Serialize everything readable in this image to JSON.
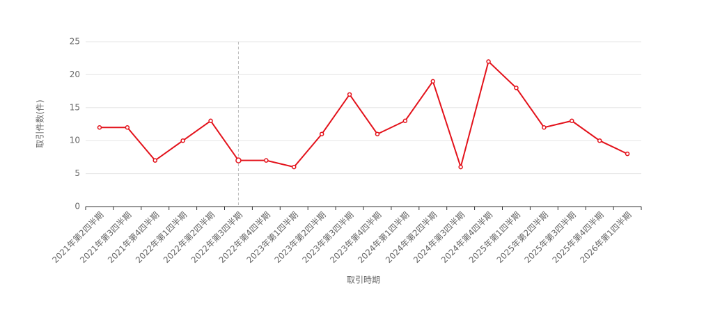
{
  "chart_data": {
    "type": "line",
    "x_label": "取引時期",
    "y_label": "取引件数(件)",
    "categories": [
      "2021年第2四半期",
      "2021年第3四半期",
      "2021年第4四半期",
      "2022年第1四半期",
      "2022年第2四半期",
      "2022年第3四半期",
      "2022年第4四半期",
      "2023年第1四半期",
      "2023年第2四半期",
      "2023年第3四半期",
      "2023年第4四半期",
      "2024年第1四半期",
      "2024年第2四半期",
      "2024年第3四半期",
      "2024年第4四半期",
      "2025年第1四半期",
      "2025年第2四半期",
      "2025年第3四半期",
      "2025年第4四半期",
      "2026年第1四半期"
    ],
    "series": [
      {
        "name": "取引件数",
        "color": "#e3121b",
        "values": [
          12,
          12,
          7,
          10,
          13,
          7,
          7,
          6,
          11,
          17,
          11,
          13,
          19,
          6,
          22,
          18,
          12,
          13,
          10,
          8
        ]
      }
    ],
    "ylim": [
      0,
      25
    ],
    "yticks": [
      0,
      5,
      10,
      15,
      20,
      25
    ],
    "grid": true
  }
}
